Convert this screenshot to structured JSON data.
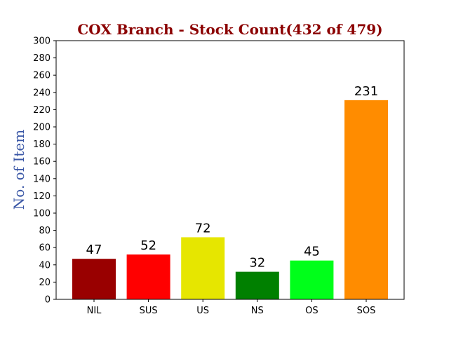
{
  "chart_data": {
    "type": "bar",
    "title": "COX Branch - Stock Count(432 of 479)",
    "xlabel": "",
    "ylabel": "No. of Item",
    "categories": [
      "NIL",
      "SUS",
      "US",
      "NS",
      "OS",
      "SOS"
    ],
    "values": [
      47,
      52,
      72,
      32,
      45,
      231
    ],
    "colors": [
      "#990000",
      "#ff0000",
      "#e6e600",
      "#008000",
      "#00ff1a",
      "#ff8c00"
    ],
    "ylim": [
      0,
      300
    ],
    "yticks": [
      "0",
      "20",
      "40",
      "60",
      "80",
      "100",
      "120",
      "140",
      "160",
      "180",
      "200",
      "220",
      "240",
      "260",
      "280",
      "300"
    ],
    "grid": false,
    "legend": "none"
  },
  "styles": {
    "title_color": "#8b0000",
    "ylabel_color": "#3a57a6"
  }
}
